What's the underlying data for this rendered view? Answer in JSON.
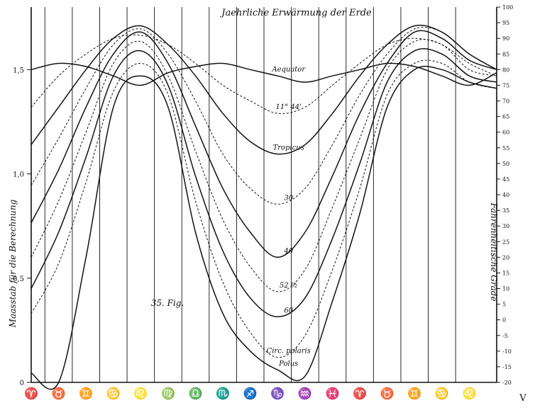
{
  "chart_data": {
    "type": "line",
    "title": "Jaehrliche Erwärmung der Erde",
    "figure_label": "35. Fig.",
    "left_axis_label": "Maasstab für die Berechnung",
    "right_axis_label": "Fahrenheitische Grade",
    "left_ticks": [
      "0",
      "0,5",
      "1,0",
      "1,5"
    ],
    "left_ylim": [
      0,
      1.8
    ],
    "right_ticks": [
      "-20",
      "-15",
      "-10",
      "-5",
      "0",
      "5",
      "10",
      "15",
      "20",
      "25",
      "30",
      "35",
      "40",
      "45",
      "50",
      "55",
      "60",
      "65",
      "70",
      "75",
      "80",
      "85",
      "90",
      "95",
      "100"
    ],
    "right_ylim": [
      -20,
      100
    ],
    "x_ticks": [
      "♈",
      "♉",
      "♊",
      "♋",
      "♌",
      "♍",
      "♎",
      "♏",
      "♐",
      "♑",
      "♒",
      "♓",
      "♈",
      "♉",
      "♊",
      "♋",
      "♌"
    ],
    "x_ticks_extra": "V",
    "xlim": [
      0,
      17
    ],
    "grid": "vertical lines at each month sign",
    "x": [
      0,
      1,
      2,
      3,
      4,
      5,
      6,
      7,
      8,
      9,
      10,
      11,
      12,
      13,
      14,
      15,
      16,
      17
    ],
    "series": [
      {
        "name": "Aequator",
        "style": "solid",
        "values": [
          80,
          82,
          81,
          78,
          75,
          79,
          81,
          82,
          80,
          78,
          76,
          78,
          80,
          82,
          81,
          78,
          75,
          79
        ]
      },
      {
        "name": "11° 44'",
        "style": "dashed",
        "values": [
          68,
          78,
          85,
          90,
          91,
          88,
          82,
          75,
          70,
          66,
          68,
          75,
          82,
          88,
          90,
          88,
          82,
          78
        ]
      },
      {
        "name": "Tropicus",
        "style": "solid",
        "values": [
          56,
          68,
          80,
          90,
          94,
          88,
          78,
          66,
          57,
          53,
          56,
          66,
          78,
          88,
          94,
          92,
          85,
          80
        ]
      },
      {
        "name": "30",
        "style": "dashed",
        "values": [
          43,
          58,
          74,
          88,
          93,
          85,
          70,
          53,
          42,
          37,
          42,
          56,
          72,
          85,
          93,
          92,
          85,
          80
        ]
      },
      {
        "name": "40",
        "style": "solid",
        "values": [
          31,
          48,
          68,
          85,
          92,
          82,
          62,
          42,
          28,
          20,
          28,
          46,
          66,
          82,
          92,
          90,
          83,
          80
        ]
      },
      {
        "name": "52 ½",
        "style": "dashed",
        "values": [
          20,
          38,
          60,
          82,
          89,
          78,
          54,
          32,
          17,
          9,
          16,
          36,
          58,
          80,
          89,
          88,
          80,
          78
        ]
      },
      {
        "name": "60",
        "style": "solid",
        "values": [
          10,
          28,
          52,
          78,
          86,
          75,
          46,
          22,
          7,
          1,
          7,
          26,
          50,
          76,
          86,
          85,
          78,
          76
        ]
      },
      {
        "name": "Circ. polaris",
        "style": "dashed",
        "values": [
          2,
          18,
          44,
          73,
          82,
          72,
          38,
          12,
          -4,
          -12,
          -5,
          16,
          42,
          72,
          82,
          82,
          76,
          74
        ]
      },
      {
        "name": "Polus",
        "style": "solid",
        "values": [
          -17,
          -20,
          20,
          68,
          78,
          68,
          28,
          2,
          -10,
          -16,
          -18,
          6,
          34,
          68,
          80,
          80,
          76,
          74
        ]
      }
    ],
    "series_label_text": [
      "Aequator",
      "11° 44'",
      "Tropicus",
      "30",
      "40",
      "52 ½",
      "60",
      "Circ. polaris",
      "Polus"
    ]
  }
}
